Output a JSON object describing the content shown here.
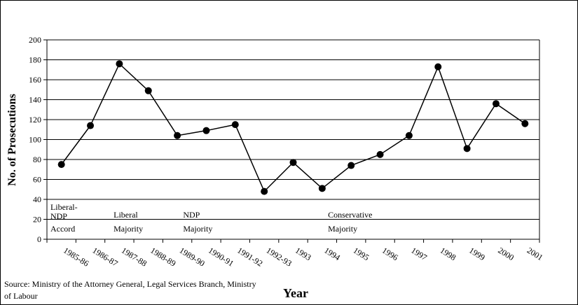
{
  "chart_data": {
    "type": "line",
    "title": "",
    "xlabel": "Year",
    "ylabel": "No. of Prosecutions",
    "ylim": [
      0,
      200
    ],
    "yticks": [
      0,
      20,
      40,
      60,
      80,
      100,
      120,
      140,
      160,
      180,
      200
    ],
    "grid": "horizontal",
    "categories": [
      "1985-86",
      "1986-87",
      "1987-88",
      "1988-89",
      "1989-90",
      "1990-91",
      "1991-92",
      "1992-93",
      "1993",
      "1994",
      "1995",
      "1996",
      "1997",
      "1998",
      "1999",
      "2000",
      "2001"
    ],
    "series": [
      {
        "values": [
          75,
          114,
          176,
          149,
          104,
          109,
          115,
          48,
          77,
          51,
          74,
          85,
          104,
          173,
          91,
          136,
          116
        ]
      }
    ],
    "annotations": [
      {
        "lines": [
          "Liberal-",
          "NDP",
          "Accord"
        ]
      },
      {
        "lines": [
          "Liberal",
          "Majority"
        ]
      },
      {
        "lines": [
          "NDP",
          "Majority"
        ]
      },
      {
        "lines": [
          "Conservative",
          "Majority"
        ]
      }
    ]
  },
  "source_note": "Source: Ministry of the Attorney General, Legal Services Branch, Ministry of Labour",
  "colors": {
    "line": "#000000",
    "grid": "#000000",
    "marker": "#000000"
  }
}
